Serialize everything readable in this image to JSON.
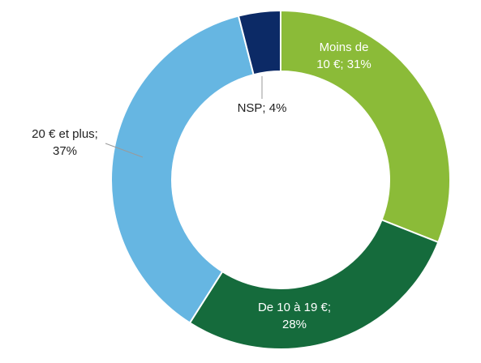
{
  "chart_data": {
    "type": "pie",
    "donut": true,
    "slices": [
      {
        "label": "Moins de 10 €",
        "value": 31,
        "color": "#8BBB38",
        "label_lines": [
          "Moins de",
          "10 €; 31%"
        ],
        "label_color": "#ffffff"
      },
      {
        "label": "De 10 à 19 €",
        "value": 28,
        "color": "#156B3C",
        "label_lines": [
          "De 10 à 19 €;",
          "28%"
        ],
        "label_color": "#ffffff"
      },
      {
        "label": "20 € et plus",
        "value": 37,
        "color": "#66B6E2",
        "label_lines": [
          "20 € et plus;",
          "37%"
        ],
        "label_color": "#222222"
      },
      {
        "label": "NSP",
        "value": 4,
        "color": "#0C2A66",
        "label_lines": [
          "NSP; 4%"
        ],
        "label_color": "#222222"
      }
    ]
  }
}
